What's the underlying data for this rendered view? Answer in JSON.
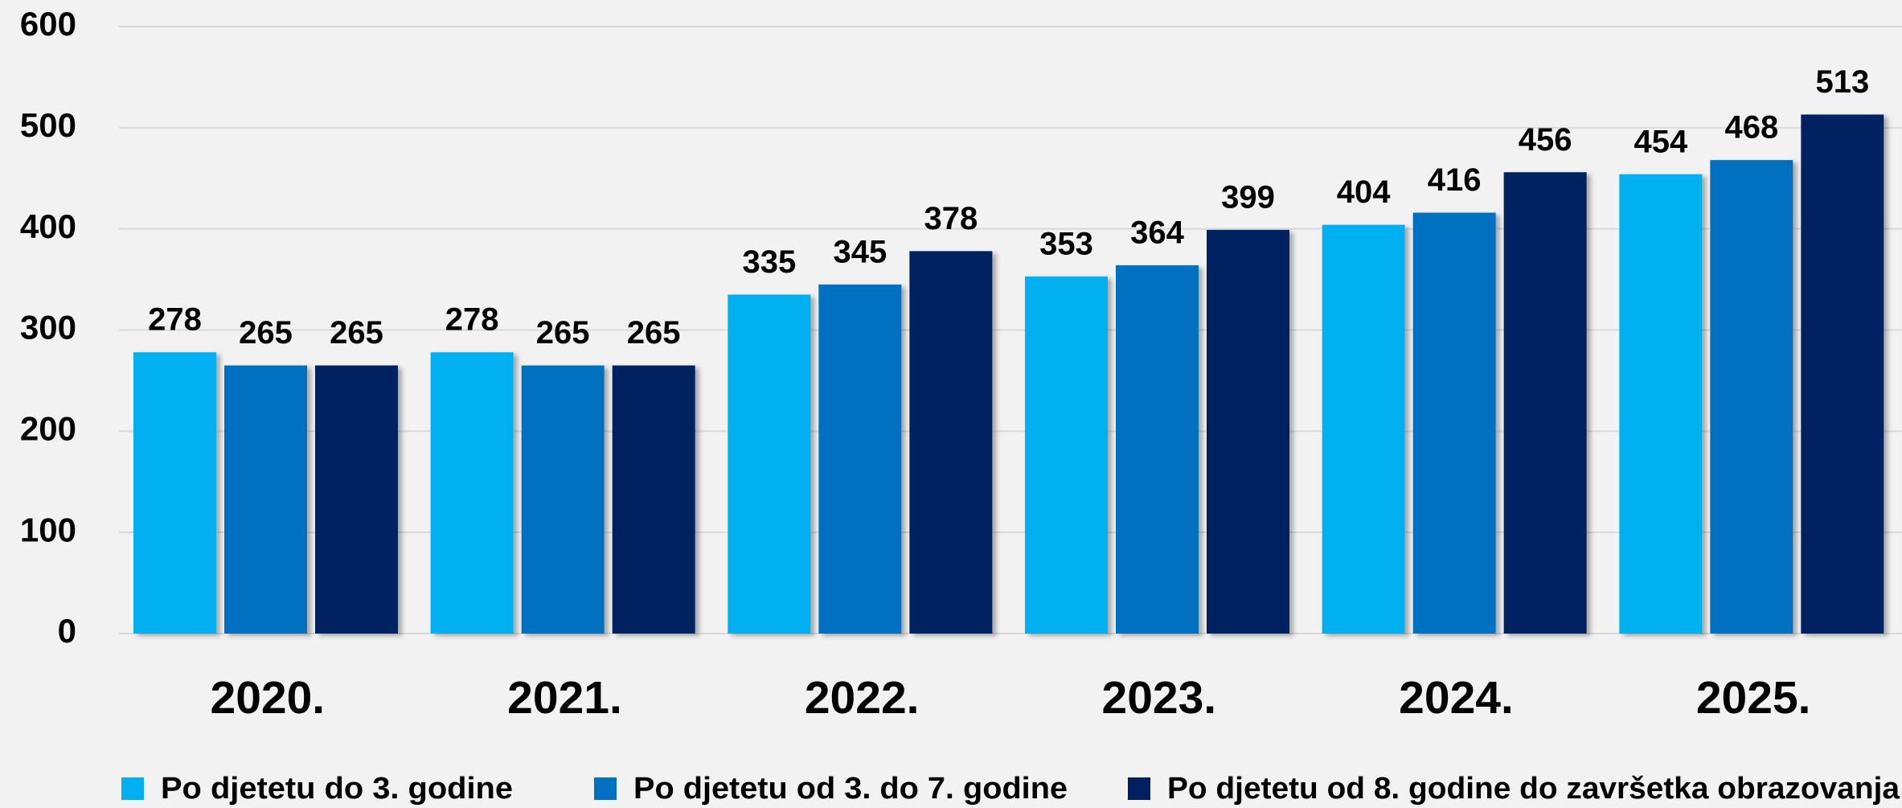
{
  "chart_data": {
    "type": "bar",
    "categories": [
      "2020.",
      "2021.",
      "2022.",
      "2023.",
      "2024.",
      "2025."
    ],
    "series": [
      {
        "name": "Po djetetu do 3. godine",
        "color": "#00b0f0",
        "values": [
          278,
          278,
          335,
          353,
          404,
          454
        ]
      },
      {
        "name": "Po djetetu od 3. do 7. godine",
        "color": "#0070c0",
        "values": [
          265,
          265,
          345,
          364,
          416,
          468
        ]
      },
      {
        "name": "Po djetetu od 8. godine do završetka obrazovanja",
        "color": "#002060",
        "values": [
          265,
          265,
          378,
          399,
          456,
          513
        ]
      }
    ],
    "ylim": [
      0,
      600
    ],
    "yticks": [
      0,
      100,
      200,
      300,
      400,
      500,
      600
    ],
    "grid": true,
    "legend": "bottom"
  }
}
